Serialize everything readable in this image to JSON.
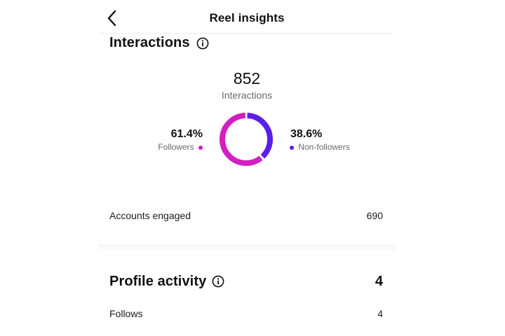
{
  "header": {
    "title": "Reel insights",
    "back_icon": "chevron-left-icon"
  },
  "interactions": {
    "title": "Interactions",
    "info_icon": "info-icon",
    "total": "852",
    "total_label": "Interactions",
    "followers": {
      "percent": "61.4%",
      "label": "Followers",
      "fraction": 0.614,
      "color": "#d21fc0"
    },
    "non_followers": {
      "percent": "38.6%",
      "label": "Non-followers",
      "fraction": 0.386,
      "color": "#5b1ee6"
    },
    "accounts_engaged": {
      "label": "Accounts engaged",
      "value": "690"
    }
  },
  "profile_activity": {
    "title": "Profile activity",
    "info_icon": "info-icon",
    "total": "4",
    "follows": {
      "label": "Follows",
      "value": "4"
    }
  }
}
